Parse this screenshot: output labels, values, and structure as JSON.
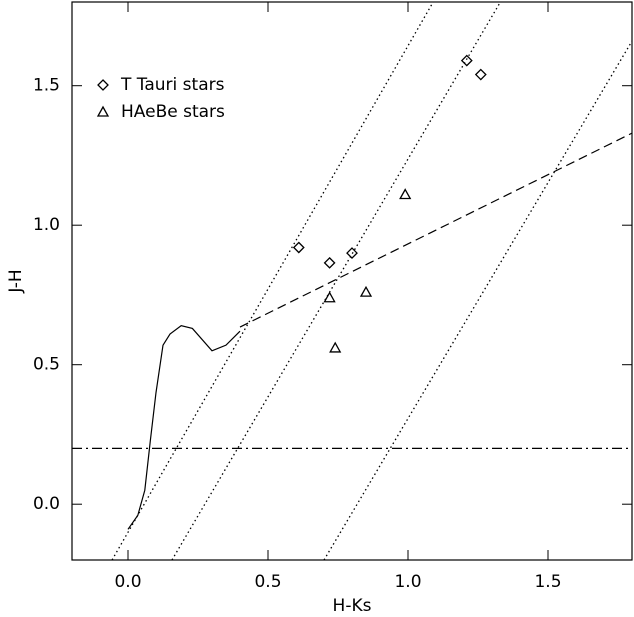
{
  "chart_data": {
    "type": "scatter",
    "xlabel": "H-Ks",
    "ylabel": "J-H",
    "xlim": [
      -0.2,
      1.8
    ],
    "ylim": [
      -0.2,
      1.8
    ],
    "xticks": [
      {
        "value": 0,
        "label": "0.0"
      },
      0.5,
      {
        "value": 1,
        "label": "1.0"
      },
      1.5
    ],
    "yticks": [
      {
        "value": 0,
        "label": "0.0"
      },
      0.5,
      {
        "value": 1,
        "label": "1.0"
      },
      1.5
    ],
    "legend": "upper left",
    "series": [
      {
        "name": "T Tauri stars",
        "marker": "diamond",
        "color": "#000000",
        "x": [
          0.61,
          0.72,
          0.8,
          1.21,
          1.26
        ],
        "values": [
          0.92,
          0.865,
          0.9,
          1.59,
          1.54
        ]
      },
      {
        "name": "HAeBe stars",
        "marker": "triangle",
        "color": "#000000",
        "x": [
          0.99,
          0.72,
          0.85,
          0.74
        ],
        "values": [
          1.11,
          0.74,
          0.76,
          0.56
        ]
      }
    ],
    "lines": [
      {
        "style": "solid",
        "x": [
          0,
          0.035,
          0.06,
          0.08,
          0.1,
          0.125,
          0.15,
          0.19,
          0.23,
          0.3,
          0.35,
          0.4
        ],
        "y": [
          -0.09,
          -0.04,
          0.05,
          0.23,
          0.4,
          0.57,
          0.61,
          0.64,
          0.63,
          0.55,
          0.57,
          0.62
        ]
      },
      {
        "style": "dashed",
        "x": [
          0.4,
          1.8
        ],
        "y": [
          0.635,
          1.33
        ]
      },
      {
        "style": "dotted",
        "x": [
          -0.057,
          1.09
        ],
        "y": [
          -0.2,
          1.8
        ]
      },
      {
        "style": "dotted",
        "x": [
          0.157,
          1.33
        ],
        "y": [
          -0.2,
          1.8
        ]
      },
      {
        "style": "dotted",
        "x": [
          0.7,
          1.8
        ],
        "y": [
          -0.2,
          1.66
        ]
      },
      {
        "style": "dashdot",
        "x": [
          -0.2,
          1.8
        ],
        "y": [
          0.2,
          0.2
        ]
      }
    ]
  }
}
